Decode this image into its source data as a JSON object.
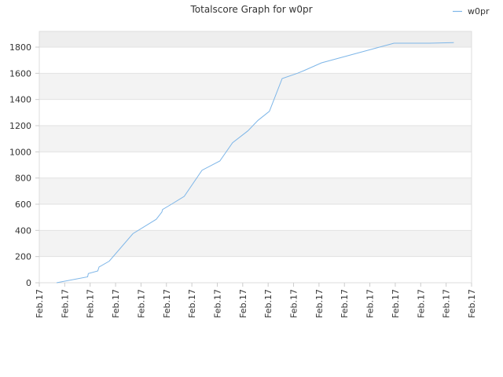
{
  "chart_data": {
    "type": "line",
    "title": "Totalscore Graph for w0pr",
    "xlabel": "",
    "ylabel": "",
    "legend": {
      "position": "top-right",
      "entries": [
        "w0pr"
      ]
    },
    "grid": true,
    "x_range": [
      0,
      17
    ],
    "ylim": [
      0,
      1920
    ],
    "y_ticks": [
      0,
      200,
      400,
      600,
      800,
      1000,
      1200,
      1400,
      1600,
      1800
    ],
    "x_ticks": [
      "Feb.17",
      "Feb.17",
      "Feb.17",
      "Feb.17",
      "Feb.17",
      "Feb.17",
      "Feb.17",
      "Feb.17",
      "Feb.17",
      "Feb.17",
      "Feb.17",
      "Feb.17",
      "Feb.17",
      "Feb.17",
      "Feb.17",
      "Feb.17",
      "Feb.17",
      "Feb.17"
    ],
    "series": [
      {
        "name": "w0pr",
        "color": "#7eb6e8",
        "x": [
          0.68,
          1.9,
          1.93,
          2.3,
          2.35,
          2.75,
          3.68,
          4.6,
          4.82,
          4.85,
          5.2,
          5.7,
          6.4,
          7.1,
          7.6,
          8.2,
          8.6,
          9.05,
          9.55,
          10.15,
          10.4,
          11.1,
          13.95,
          15.35,
          16.3
        ],
        "values": [
          0,
          45,
          70,
          90,
          120,
          165,
          375,
          485,
          540,
          560,
          600,
          660,
          860,
          930,
          1070,
          1160,
          1240,
          1310,
          1560,
          1600,
          1620,
          1680,
          1830,
          1830,
          1835
        ]
      }
    ]
  }
}
